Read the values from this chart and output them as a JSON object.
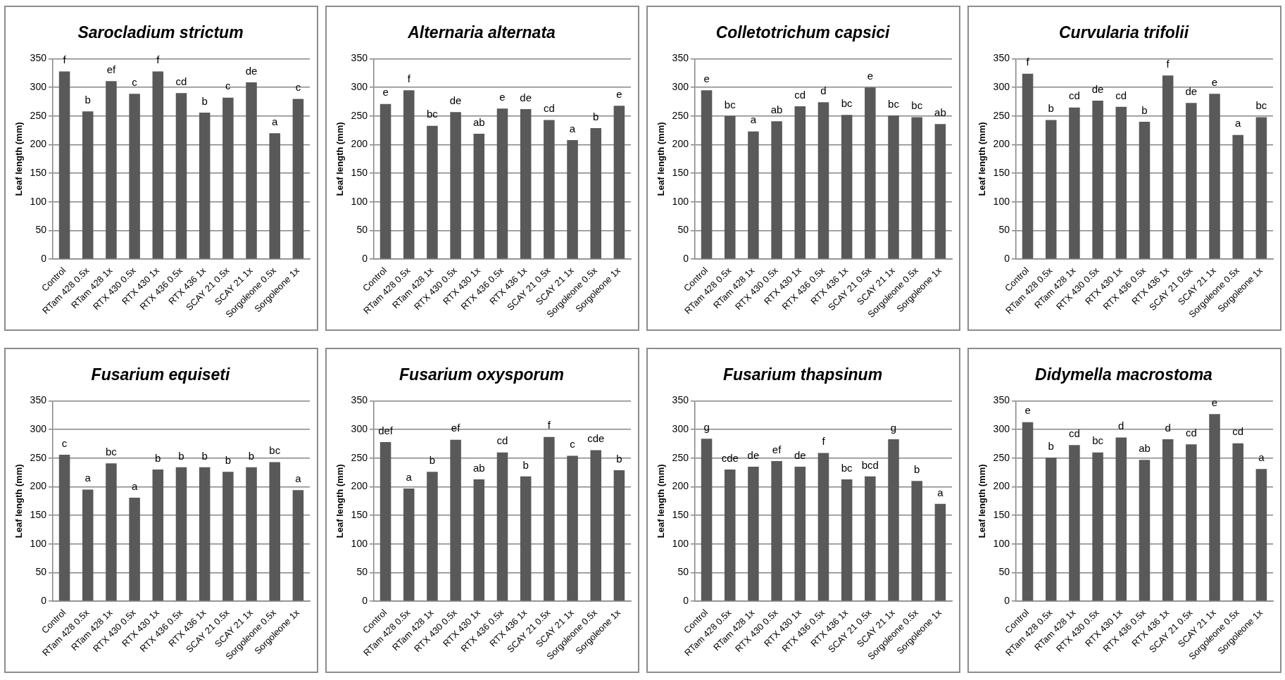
{
  "chart_data": [
    {
      "type": "bar",
      "title": "Sarocladium strictum",
      "ylabel": "Leaf length (mm)",
      "categories": [
        "Control",
        "RTam 428 0.5x",
        "RTam 428 1x",
        "RTX 430 0.5x",
        "RTX 430 1x",
        "RTX 436 0.5x",
        "RTX 436 1x",
        "SCAY 21 0.5x",
        "SCAY 21 1x",
        "Sorgoleone 0.5x",
        "Sorgoleone 1x"
      ],
      "values": [
        328,
        258,
        311,
        289,
        328,
        290,
        256,
        282,
        309,
        220,
        280
      ],
      "value_labels": [
        "f",
        "b",
        "ef",
        "c",
        "f",
        "cd",
        "b",
        "c",
        "de",
        "a",
        "c"
      ],
      "color": "#595959",
      "ylim": [
        0,
        350
      ],
      "yticks": [
        0,
        50,
        100,
        150,
        200,
        250,
        300,
        350
      ],
      "grid": "y",
      "legend": false
    },
    {
      "type": "bar",
      "title": "Alternaria alternata",
      "ylabel": "Leaf length (mm)",
      "categories": [
        "Control",
        "RTam 428 0.5x",
        "RTam 428 1x",
        "RTX 430 0.5x",
        "RTX 430 1x",
        "RTX 436 0.5x",
        "RTX 436 1x",
        "SCAY 21 0.5x",
        "SCAY 21 1x",
        "Sorgoleone 0.5x",
        "Sorgoleone 1x"
      ],
      "values": [
        271,
        295,
        233,
        257,
        219,
        263,
        262,
        243,
        208,
        229,
        268
      ],
      "value_labels": [
        "e",
        "f",
        "bc",
        "de",
        "ab",
        "e",
        "de",
        "cd",
        "a",
        "b",
        "e"
      ],
      "color": "#595959",
      "ylim": [
        0,
        350
      ],
      "yticks": [
        0,
        50,
        100,
        150,
        200,
        250,
        300,
        350
      ],
      "grid": "y",
      "legend": false
    },
    {
      "type": "bar",
      "title": "Colletotrichum capsici",
      "ylabel": "Leaf length (mm)",
      "categories": [
        "Control",
        "RTam 428 0.5x",
        "RTam 428 1x",
        "RTX 430 0.5x",
        "RTX 430 1x",
        "RTX 436 0.5x",
        "RTX 436 1x",
        "SCAY 21 0.5x",
        "SCAY 21 1x",
        "Sorgoleone 0.5x",
        "Sorgoleone 1x"
      ],
      "values": [
        295,
        250,
        223,
        241,
        267,
        274,
        252,
        300,
        251,
        248,
        236
      ],
      "value_labels": [
        "e",
        "bc",
        "a",
        "ab",
        "cd",
        "d",
        "bc",
        "e",
        "bc",
        "bc",
        "ab"
      ],
      "color": "#595959",
      "ylim": [
        0,
        350
      ],
      "yticks": [
        0,
        50,
        100,
        150,
        200,
        250,
        300,
        350
      ],
      "grid": "y",
      "legend": false
    },
    {
      "type": "bar",
      "title": "Curvularia trifolii",
      "ylabel": "Leaf length (mm)",
      "categories": [
        "Control",
        "RTam 428 0.5x",
        "RTam 428 1x",
        "RTX 430 0.5x",
        "RTX 430 1x",
        "RTX 436 0.5x",
        "RTX 436 1x",
        "SCAY 21 0.5x",
        "SCAY 21 1x",
        "Sorgoleone 0.5x",
        "Sorgoleone 1x"
      ],
      "values": [
        324,
        243,
        265,
        277,
        266,
        240,
        321,
        273,
        289,
        217,
        248
      ],
      "value_labels": [
        "f",
        "b",
        "cd",
        "de",
        "cd",
        "b",
        "f",
        "de",
        "e",
        "a",
        "bc"
      ],
      "color": "#595959",
      "ylim": [
        0,
        350
      ],
      "yticks": [
        0,
        50,
        100,
        150,
        200,
        250,
        300,
        350
      ],
      "grid": "y",
      "legend": false
    },
    {
      "type": "bar",
      "title": "Fusarium equiseti",
      "ylabel": "Leaf length (mm)",
      "categories": [
        "Control",
        "RTam 428 0.5x",
        "RTam 428 1x",
        "RTX 430 0.5x",
        "RTX 430 1x",
        "RTX 436 0.5x",
        "RTX 436 1x",
        "SCAY 21 0.5x",
        "SCAY 21 1x",
        "Sorgoleone 0.5x",
        "Sorgoleone 1x"
      ],
      "values": [
        256,
        195,
        241,
        181,
        230,
        234,
        234,
        226,
        234,
        243,
        194
      ],
      "value_labels": [
        "c",
        "a",
        "bc",
        "a",
        "b",
        "b",
        "b",
        "b",
        "b",
        "bc",
        "a"
      ],
      "color": "#595959",
      "ylim": [
        0,
        350
      ],
      "yticks": [
        0,
        50,
        100,
        150,
        200,
        250,
        300,
        350
      ],
      "grid": "y",
      "legend": false
    },
    {
      "type": "bar",
      "title": "Fusarium oxysporum",
      "ylabel": "Leaf length (mm)",
      "categories": [
        "Control",
        "RTam 428 0.5x",
        "RTam 428 1x",
        "RTX 430 0.5x",
        "RTX 430 1x",
        "RTX 436 0.5x",
        "RTX 436 1x",
        "SCAY 21 0.5x",
        "SCAY 21 1x",
        "Sorgoleone 0.5x",
        "Sorgoleone 1x"
      ],
      "values": [
        278,
        197,
        226,
        282,
        213,
        260,
        218,
        287,
        254,
        264,
        229
      ],
      "value_labels": [
        "def",
        "a",
        "b",
        "ef",
        "ab",
        "cd",
        "b",
        "f",
        "c",
        "cde",
        "b"
      ],
      "color": "#595959",
      "ylim": [
        0,
        350
      ],
      "yticks": [
        0,
        50,
        100,
        150,
        200,
        250,
        300,
        350
      ],
      "grid": "y",
      "legend": false
    },
    {
      "type": "bar",
      "title": "Fusarium thapsinum",
      "ylabel": "Leaf length (mm)",
      "categories": [
        "Control",
        "RTam 428 0.5x",
        "RTam 428 1x",
        "RTX 430 0.5x",
        "RTX 430 1x",
        "RTX 436 0.5x",
        "RTX 436 1x",
        "SCAY 21 0.5x",
        "SCAY 21 1x",
        "Sorgoleone 0.5x",
        "Sorgoleone 1x"
      ],
      "values": [
        284,
        230,
        235,
        245,
        235,
        259,
        213,
        218,
        283,
        210,
        170
      ],
      "value_labels": [
        "g",
        "cde",
        "de",
        "ef",
        "de",
        "f",
        "bc",
        "bcd",
        "g",
        "b",
        "a"
      ],
      "color": "#595959",
      "ylim": [
        0,
        350
      ],
      "yticks": [
        0,
        50,
        100,
        150,
        200,
        250,
        300,
        350
      ],
      "grid": "y",
      "legend": false
    },
    {
      "type": "bar",
      "title": "Didymella macrostoma",
      "ylabel": "Leaf length (mm)",
      "categories": [
        "Control",
        "RTam 428 0.5x",
        "RTam 428 1x",
        "RTX 430 0.5x",
        "RTX 430 1x",
        "RTX 436 0.5x",
        "RTX 436 1x",
        "SCAY 21 0.5x",
        "SCAY 21 1x",
        "Sorgoleone 0.5x",
        "Sorgoleone 1x"
      ],
      "values": [
        313,
        251,
        273,
        260,
        286,
        247,
        283,
        274,
        327,
        276,
        231
      ],
      "value_labels": [
        "e",
        "b",
        "cd",
        "bc",
        "d",
        "ab",
        "d",
        "cd",
        "e",
        "cd",
        "a"
      ],
      "color": "#595959",
      "ylim": [
        0,
        350
      ],
      "yticks": [
        0,
        50,
        100,
        150,
        200,
        250,
        300,
        350
      ],
      "grid": "y",
      "legend": false
    }
  ]
}
